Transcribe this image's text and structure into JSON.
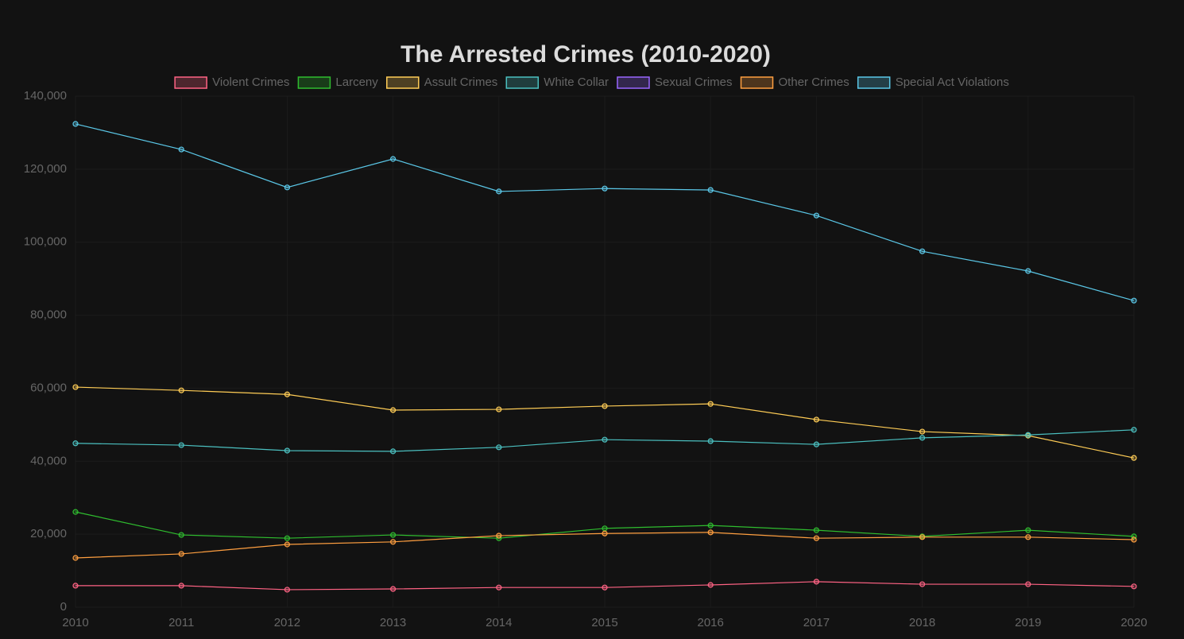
{
  "chart_data": {
    "type": "line",
    "title": "The Arrested Crimes (2010-2020)",
    "categories": [
      "2010",
      "2011",
      "2012",
      "2013",
      "2014",
      "2015",
      "2016",
      "2017",
      "2018",
      "2019",
      "2020"
    ],
    "series": [
      {
        "name": "Violent Crimes",
        "color": "#ff6384",
        "values": [
          5900,
          5900,
          4800,
          5000,
          5400,
          5400,
          6100,
          7000,
          6300,
          6300,
          5700
        ]
      },
      {
        "name": "Larceny",
        "color": "#2fbd2f",
        "values": [
          26100,
          19800,
          18900,
          19800,
          18900,
          21600,
          22400,
          21100,
          19400,
          21100,
          19400
        ]
      },
      {
        "name": "Assult Crimes",
        "color": "#ffcd56",
        "values": [
          60300,
          59400,
          58300,
          54000,
          54200,
          55100,
          55700,
          51400,
          48100,
          47000,
          40900
        ]
      },
      {
        "name": "White Collar",
        "color": "#4bc0c0",
        "values": [
          44900,
          44400,
          42900,
          42700,
          43800,
          45900,
          45500,
          44600,
          46400,
          47200,
          48600
        ]
      },
      {
        "name": "Sexual Crimes",
        "color": "#9966ff",
        "values": [
          null,
          null,
          null,
          null,
          null,
          null,
          null,
          null,
          null,
          null,
          null
        ]
      },
      {
        "name": "Other Crimes",
        "color": "#ff9f40",
        "values": [
          13500,
          14600,
          17200,
          17900,
          19600,
          20200,
          20500,
          18900,
          19200,
          19200,
          18500
        ]
      },
      {
        "name": "Special Act Violations",
        "color": "#5bc8e8",
        "values": [
          132400,
          125400,
          115000,
          122800,
          113900,
          114700,
          114300,
          107300,
          97500,
          92100,
          84000
        ]
      }
    ],
    "ylim": [
      0,
      140000
    ],
    "yticks": [
      0,
      {
        "value": 20000,
        "label": "20,000"
      },
      {
        "value": 40000,
        "label": "40,000"
      },
      {
        "value": 60000,
        "label": "60,000"
      },
      {
        "value": 80000,
        "label": "80,000"
      },
      {
        "value": 100000,
        "label": "100,000"
      },
      {
        "value": 120000,
        "label": "120,000"
      },
      {
        "value": 140000,
        "label": "140,000"
      }
    ],
    "grid": true,
    "legend": "top"
  }
}
